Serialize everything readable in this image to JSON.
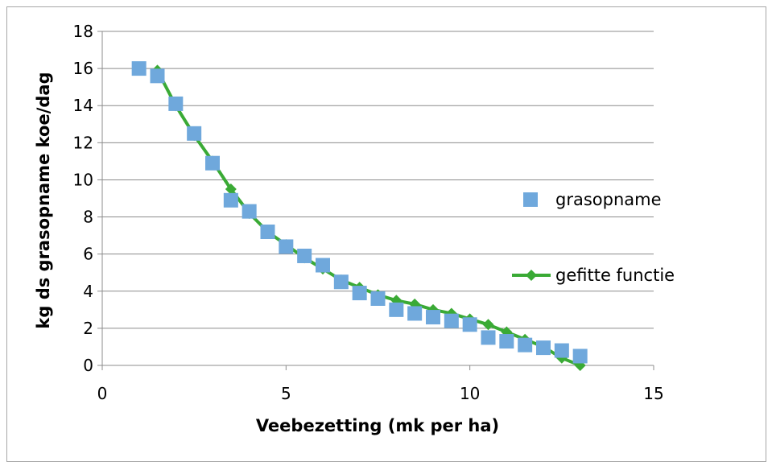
{
  "chart_data": {
    "type": "scatter",
    "title": "",
    "xlabel": "Veebezetting (mk per ha)",
    "ylabel": "kg ds grasopname  koe/dag",
    "xlim": [
      0,
      15
    ],
    "ylim": [
      0,
      18
    ],
    "xticks": [
      0,
      5,
      10,
      15
    ],
    "yticks": [
      0,
      2,
      4,
      6,
      8,
      10,
      12,
      14,
      16,
      18
    ],
    "grid": "horizontal",
    "legend": "right",
    "series": [
      {
        "name": "grasopname",
        "kind": "marker",
        "marker": "square",
        "color": "#6fa8dc",
        "points": [
          [
            1.0,
            16.0
          ],
          [
            1.5,
            15.6
          ],
          [
            2.0,
            14.1
          ],
          [
            2.5,
            12.5
          ],
          [
            3.0,
            10.9
          ],
          [
            3.5,
            8.9
          ],
          [
            4.0,
            8.3
          ],
          [
            4.5,
            7.2
          ],
          [
            5.0,
            6.4
          ],
          [
            5.5,
            5.9
          ],
          [
            6.0,
            5.4
          ],
          [
            6.5,
            4.5
          ],
          [
            7.0,
            3.9
          ],
          [
            7.5,
            3.6
          ],
          [
            8.0,
            3.0
          ],
          [
            8.5,
            2.8
          ],
          [
            9.0,
            2.6
          ],
          [
            9.5,
            2.4
          ],
          [
            10.0,
            2.2
          ],
          [
            10.5,
            1.5
          ],
          [
            11.0,
            1.3
          ],
          [
            11.5,
            1.1
          ],
          [
            12.0,
            0.95
          ],
          [
            12.5,
            0.8
          ],
          [
            13.0,
            0.5
          ]
        ]
      },
      {
        "name": "gefitte functie",
        "kind": "line",
        "marker": "diamond",
        "color": "#3aaa35",
        "points": [
          [
            1.5,
            15.9
          ],
          [
            2.0,
            14.0
          ],
          [
            2.5,
            12.4
          ],
          [
            3.0,
            11.0
          ],
          [
            3.5,
            9.5
          ],
          [
            4.0,
            8.2
          ],
          [
            4.5,
            7.2
          ],
          [
            5.0,
            6.5
          ],
          [
            5.5,
            5.8
          ],
          [
            6.0,
            5.2
          ],
          [
            6.5,
            4.6
          ],
          [
            7.0,
            4.2
          ],
          [
            7.5,
            3.8
          ],
          [
            8.0,
            3.5
          ],
          [
            8.5,
            3.3
          ],
          [
            9.0,
            3.0
          ],
          [
            9.5,
            2.8
          ],
          [
            10.0,
            2.5
          ],
          [
            10.5,
            2.2
          ],
          [
            11.0,
            1.8
          ],
          [
            11.5,
            1.4
          ],
          [
            12.0,
            1.0
          ],
          [
            12.5,
            0.4
          ],
          [
            13.0,
            0.0
          ]
        ]
      }
    ]
  }
}
